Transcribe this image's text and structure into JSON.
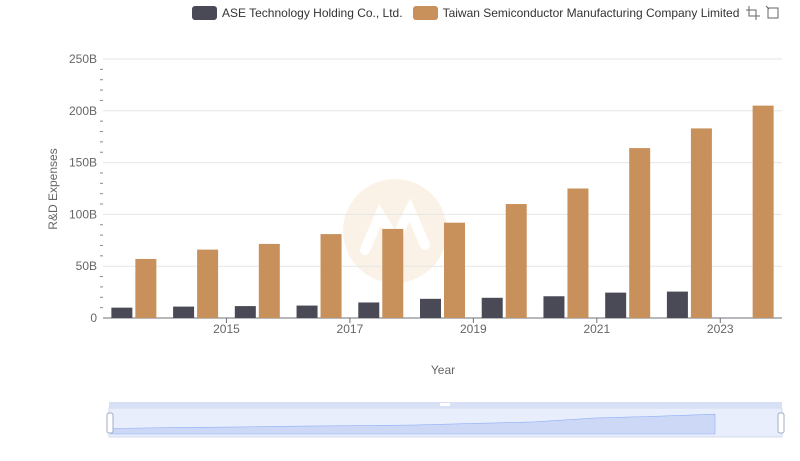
{
  "legend": {
    "items": [
      {
        "label": "ASE Technology Holding Co., Ltd.",
        "color": "#4a4a56"
      },
      {
        "label": "Taiwan Semiconductor Manufacturing Company Limited",
        "color": "#c8905a"
      }
    ]
  },
  "toolbox": {
    "icons": [
      "zoom-icon",
      "restore-icon"
    ]
  },
  "chart_data": {
    "type": "bar",
    "categories": [
      "2014",
      "2015",
      "2016",
      "2017",
      "2018",
      "2019",
      "2020",
      "2021",
      "2022",
      "2023",
      "2024"
    ],
    "x_tick_labels": [
      "2015",
      "2017",
      "2019",
      "2021",
      "2023"
    ],
    "series": [
      {
        "name": "ASE Technology Holding Co., Ltd.",
        "color": "#4a4a56",
        "values": [
          10,
          11,
          11.5,
          12,
          15,
          18.5,
          19.5,
          21,
          24.5,
          25.5,
          null
        ]
      },
      {
        "name": "Taiwan Semiconductor Manufacturing Company Limited",
        "color": "#c8905a",
        "values": [
          57,
          66,
          71.5,
          81,
          86,
          92,
          110,
          125,
          164,
          183,
          205
        ]
      }
    ],
    "ylim": [
      0,
      250
    ],
    "y_ticks": [
      0,
      50,
      100,
      150,
      200,
      250
    ],
    "y_tick_labels": [
      "0",
      "50B",
      "100B",
      "150B",
      "200B",
      "250B"
    ],
    "xlabel": "Year",
    "ylabel": "R&D Expenses",
    "grid": true,
    "legend_position": "top"
  },
  "data_zoom": {
    "range_percent": [
      0,
      100
    ]
  }
}
